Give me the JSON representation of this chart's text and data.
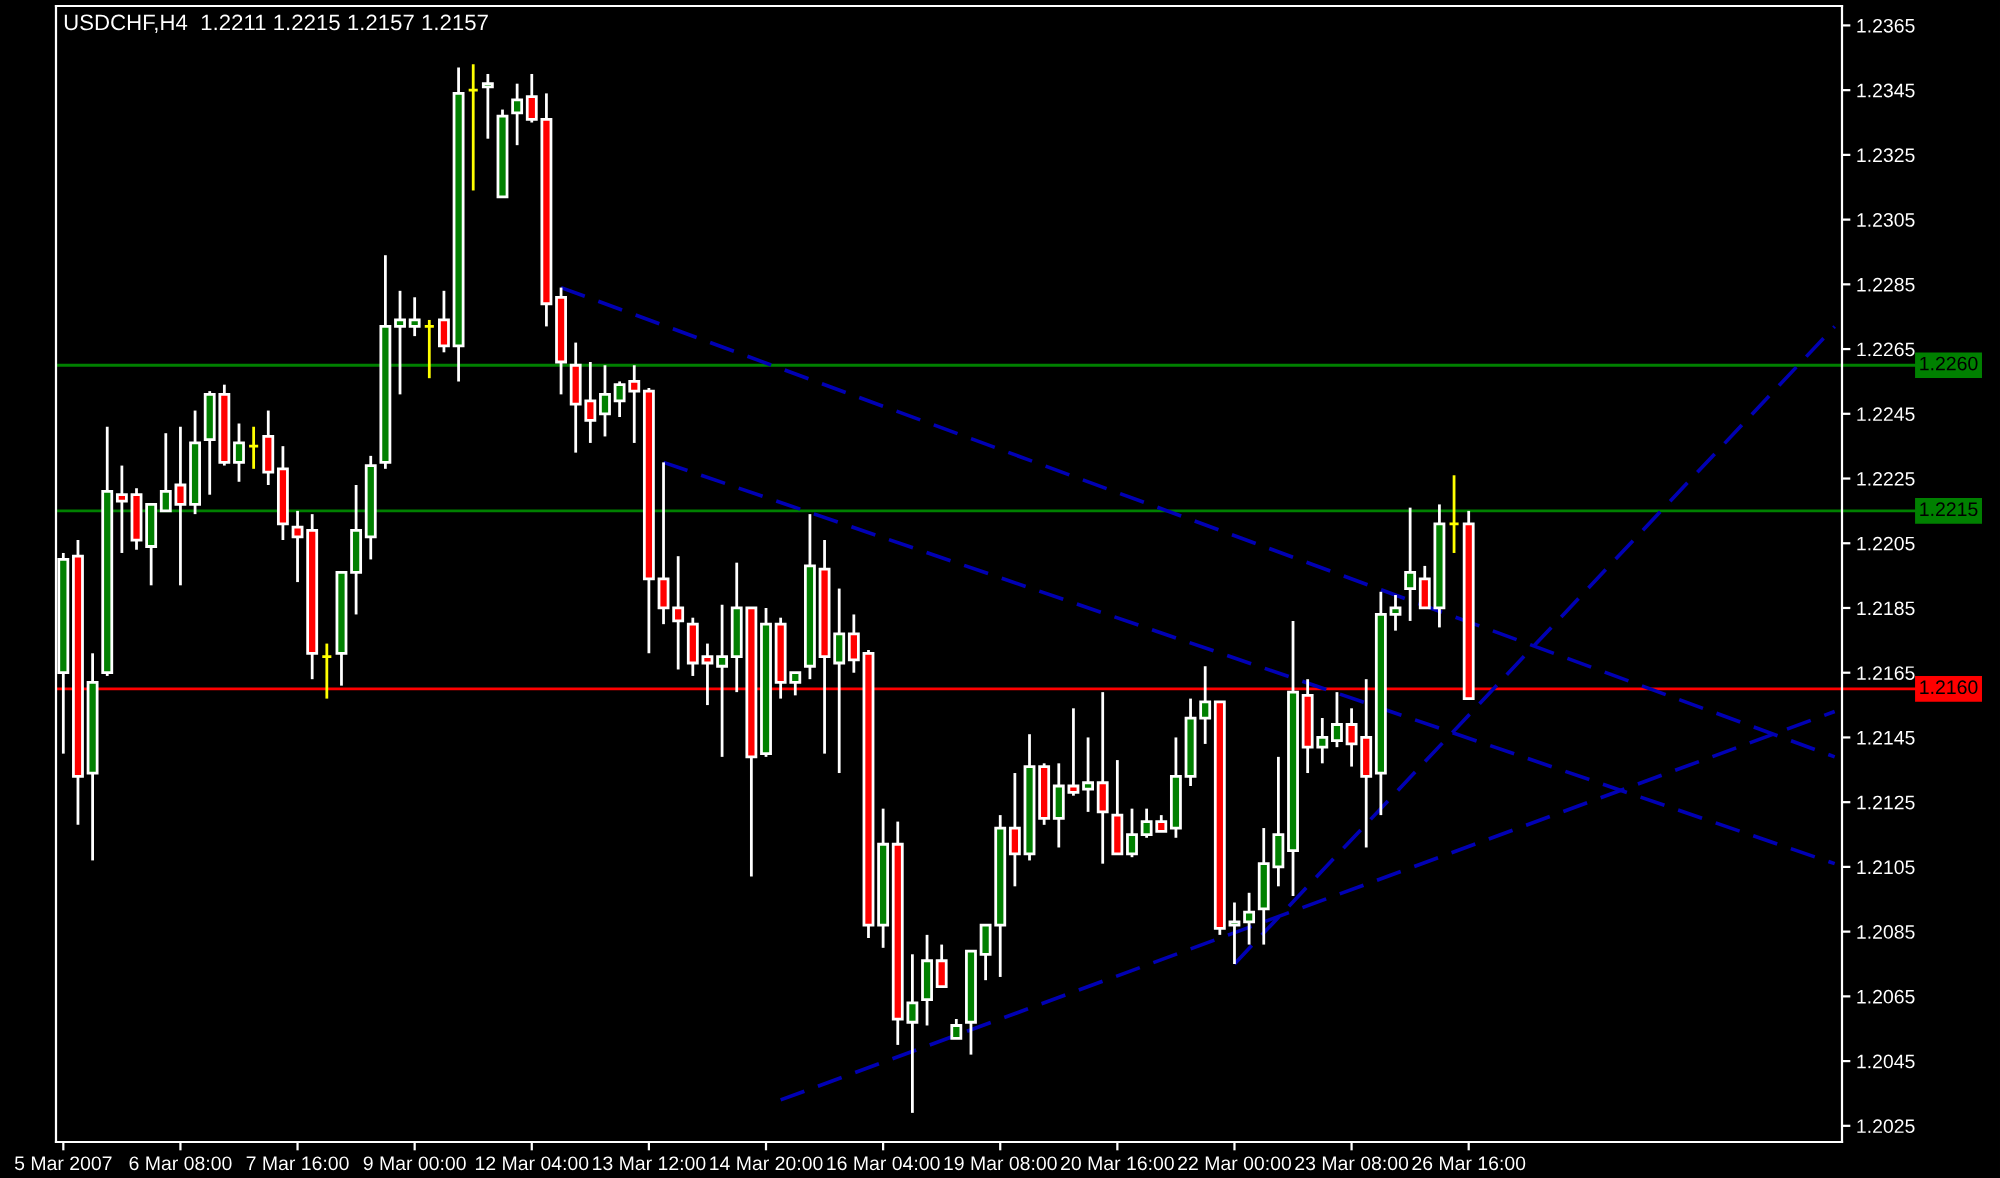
{
  "chart_data": {
    "type": "candlestick",
    "title": "USDCHF,H4  1.2211 1.2215 1.2157 1.2157",
    "categories": [
      "5 Mar 2007",
      null,
      null,
      null,
      null,
      null,
      null,
      null,
      "6 Mar 08:00",
      null,
      null,
      null,
      null,
      null,
      null,
      null,
      "7 Mar 16:00",
      null,
      null,
      null,
      null,
      null,
      null,
      null,
      "9 Mar 00:00",
      null,
      null,
      null,
      null,
      null,
      null,
      null,
      "12 Mar 04:00",
      null,
      null,
      null,
      null,
      null,
      null,
      null,
      "13 Mar 12:00",
      null,
      null,
      null,
      null,
      null,
      null,
      null,
      "14 Mar 20:00",
      null,
      null,
      null,
      null,
      null,
      null,
      null,
      "16 Mar 04:00",
      null,
      null,
      null,
      null,
      null,
      null,
      null,
      "19 Mar 08:00",
      null,
      null,
      null,
      null,
      null,
      null,
      null,
      "20 Mar 16:00",
      null,
      null,
      null,
      null,
      null,
      null,
      null,
      "22 Mar 00:00",
      null,
      null,
      null,
      null,
      null,
      null,
      null,
      "23 Mar 08:00",
      null,
      null,
      null,
      null,
      null,
      null,
      null,
      "26 Mar 16:00",
      null,
      null,
      null,
      null,
      null,
      null,
      null,
      null,
      null,
      null,
      null,
      null,
      null,
      null,
      null,
      null,
      null,
      null,
      null,
      null,
      null,
      null,
      null,
      null,
      null
    ],
    "ohlc": [
      [
        1.2165,
        1.2202,
        1.214,
        1.22
      ],
      [
        1.2201,
        1.2206,
        1.2118,
        1.2133
      ],
      [
        1.2134,
        1.2171,
        1.2107,
        1.2162
      ],
      [
        1.2165,
        1.2241,
        1.2164,
        1.2221
      ],
      [
        1.222,
        1.2229,
        1.2202,
        1.2218
      ],
      [
        1.222,
        1.2222,
        1.2203,
        1.2206
      ],
      [
        1.2204,
        1.2217,
        1.2192,
        1.2217
      ],
      [
        1.2215,
        1.2239,
        1.2215,
        1.2221
      ],
      [
        1.2223,
        1.2241,
        1.2192,
        1.2217
      ],
      [
        1.2217,
        1.2246,
        1.2214,
        1.2236
      ],
      [
        1.2237,
        1.2252,
        1.222,
        1.2251
      ],
      [
        1.2251,
        1.2254,
        1.2229,
        1.223
      ],
      [
        1.223,
        1.2242,
        1.2224,
        1.2236
      ],
      [
        1.2235,
        1.2241,
        1.2228,
        1.2235
      ],
      [
        1.2238,
        1.2246,
        1.2223,
        1.2227
      ],
      [
        1.2228,
        1.2235,
        1.2206,
        1.2211
      ],
      [
        1.221,
        1.2215,
        1.2193,
        1.2207
      ],
      [
        1.2209,
        1.2214,
        1.2163,
        1.2171
      ],
      [
        1.217,
        1.2174,
        1.2157,
        1.217
      ],
      [
        1.2171,
        1.2196,
        1.2161,
        1.2196
      ],
      [
        1.2196,
        1.2223,
        1.2183,
        1.2209
      ],
      [
        1.2207,
        1.2232,
        1.22,
        1.2229
      ],
      [
        1.223,
        1.2294,
        1.2228,
        1.2272
      ],
      [
        1.2272,
        1.2283,
        1.2251,
        1.2274
      ],
      [
        1.2272,
        1.2281,
        1.2269,
        1.2274
      ],
      [
        1.2272,
        1.2274,
        1.2256,
        1.2272
      ],
      [
        1.2274,
        1.2283,
        1.2264,
        1.2266
      ],
      [
        1.2266,
        1.2352,
        1.2255,
        1.2344
      ],
      [
        1.2345,
        1.2353,
        1.2314,
        1.2345
      ],
      [
        1.2346,
        1.235,
        1.233,
        1.2347
      ],
      [
        1.2312,
        1.2339,
        1.2312,
        1.2337
      ],
      [
        1.2338,
        1.2347,
        1.2328,
        1.2342
      ],
      [
        1.2343,
        1.235,
        1.2335,
        1.2336
      ],
      [
        1.2336,
        1.2344,
        1.2272,
        1.2279
      ],
      [
        1.2281,
        1.2284,
        1.2251,
        1.2261
      ],
      [
        1.226,
        1.2267,
        1.2233,
        1.2248
      ],
      [
        1.2249,
        1.2261,
        1.2236,
        1.2243
      ],
      [
        1.2245,
        1.226,
        1.2238,
        1.2251
      ],
      [
        1.2249,
        1.2255,
        1.2244,
        1.2254
      ],
      [
        1.2255,
        1.226,
        1.2236,
        1.2252
      ],
      [
        1.2252,
        1.2253,
        1.2171,
        1.2194
      ],
      [
        1.2194,
        1.223,
        1.218,
        1.2185
      ],
      [
        1.2185,
        1.2201,
        1.2166,
        1.2181
      ],
      [
        1.218,
        1.2182,
        1.2164,
        1.2168
      ],
      [
        1.217,
        1.2174,
        1.2155,
        1.2168
      ],
      [
        1.2167,
        1.2186,
        1.2139,
        1.217
      ],
      [
        1.217,
        1.2199,
        1.2159,
        1.2185
      ],
      [
        1.2185,
        1.2185,
        1.2102,
        1.2139
      ],
      [
        1.214,
        1.2185,
        1.2139,
        1.218
      ],
      [
        1.218,
        1.2182,
        1.2157,
        1.2162
      ],
      [
        1.2162,
        1.2165,
        1.2158,
        1.2165
      ],
      [
        1.2167,
        1.2214,
        1.2163,
        1.2198
      ],
      [
        1.2197,
        1.2206,
        1.214,
        1.217
      ],
      [
        1.2168,
        1.2191,
        1.2134,
        1.2177
      ],
      [
        1.2177,
        1.2183,
        1.2165,
        1.2169
      ],
      [
        1.2171,
        1.2172,
        1.2083,
        1.2087
      ],
      [
        1.2087,
        1.2123,
        1.208,
        1.2112
      ],
      [
        1.2112,
        1.2119,
        1.205,
        1.2058
      ],
      [
        1.2057,
        1.2078,
        1.2029,
        1.2063
      ],
      [
        1.2064,
        1.2084,
        1.2056,
        1.2076
      ],
      [
        1.2076,
        1.2081,
        1.2068,
        1.2068
      ],
      [
        1.2052,
        1.2058,
        1.2052,
        1.2056
      ],
      [
        1.2057,
        1.2079,
        1.2047,
        1.2079
      ],
      [
        1.2078,
        1.2087,
        1.207,
        1.2087
      ],
      [
        1.2087,
        1.2121,
        1.2071,
        1.2117
      ],
      [
        1.2117,
        1.2134,
        1.2099,
        1.2109
      ],
      [
        1.2109,
        1.2146,
        1.2107,
        1.2136
      ],
      [
        1.2136,
        1.2137,
        1.2118,
        1.212
      ],
      [
        1.212,
        1.2137,
        1.2111,
        1.213
      ],
      [
        1.213,
        1.2154,
        1.2127,
        1.2128
      ],
      [
        1.2129,
        1.2145,
        1.2122,
        1.2131
      ],
      [
        1.2131,
        1.2159,
        1.2106,
        1.2122
      ],
      [
        1.2121,
        1.2138,
        1.2109,
        1.2109
      ],
      [
        1.2109,
        1.2123,
        1.2108,
        1.2115
      ],
      [
        1.2115,
        1.2123,
        1.2114,
        1.2119
      ],
      [
        1.2119,
        1.2121,
        1.2116,
        1.2116
      ],
      [
        1.2117,
        1.2145,
        1.2114,
        1.2133
      ],
      [
        1.2133,
        1.2157,
        1.213,
        1.2151
      ],
      [
        1.2151,
        1.2167,
        1.2143,
        1.2156
      ],
      [
        1.2156,
        1.2156,
        1.2084,
        1.2086
      ],
      [
        1.2087,
        1.2094,
        1.2075,
        1.2088
      ],
      [
        1.2088,
        1.2097,
        1.2081,
        1.2091
      ],
      [
        1.2092,
        1.2117,
        1.2081,
        1.2106
      ],
      [
        1.2105,
        1.2139,
        1.2099,
        1.2115
      ],
      [
        1.211,
        1.2181,
        1.2096,
        1.2159
      ],
      [
        1.2158,
        1.2163,
        1.2134,
        1.2142
      ],
      [
        1.2142,
        1.2151,
        1.2137,
        1.2145
      ],
      [
        1.2144,
        1.2159,
        1.2142,
        1.2149
      ],
      [
        1.2149,
        1.2154,
        1.2136,
        1.2143
      ],
      [
        1.2145,
        1.2163,
        1.2111,
        1.2133
      ],
      [
        1.2134,
        1.219,
        1.2121,
        1.2183
      ],
      [
        1.2183,
        1.2189,
        1.2178,
        1.2185
      ],
      [
        1.2191,
        1.2216,
        1.2181,
        1.2196
      ],
      [
        1.2194,
        1.2198,
        1.2185,
        1.2185
      ],
      [
        1.2185,
        1.2217,
        1.2179,
        1.2211
      ],
      [
        1.2211,
        1.2226,
        1.2202,
        1.2211
      ],
      [
        1.2211,
        1.2215,
        1.2157,
        1.2157
      ],
      null,
      null,
      null,
      null,
      null,
      null,
      null,
      null,
      null,
      null,
      null,
      null,
      null,
      null,
      null,
      null,
      null,
      null,
      null,
      null,
      null,
      null,
      null,
      null,
      null
    ],
    "colors": [
      "#008000",
      "#ff0000",
      "#008000",
      "#008000",
      "#ff0000",
      "#ff0000",
      "#008000",
      "#008000",
      "#ff0000",
      "#008000",
      "#008000",
      "#ff0000",
      "#008000",
      "#ffff00",
      "#ff0000",
      "#ff0000",
      "#ff0000",
      "#ff0000",
      "#ffff00",
      "#008000",
      "#008000",
      "#008000",
      "#008000",
      "#008000",
      "#008000",
      "#ffff00",
      "#ff0000",
      "#008000",
      "#ffff00",
      "#008000",
      "#008000",
      "#008000",
      "#ff0000",
      "#ff0000",
      "#ff0000",
      "#ff0000",
      "#ff0000",
      "#008000",
      "#008000",
      "#ff0000",
      "#ff0000",
      "#ff0000",
      "#ff0000",
      "#ff0000",
      "#ff0000",
      "#008000",
      "#008000",
      "#ff0000",
      "#008000",
      "#ff0000",
      "#008000",
      "#008000",
      "#ff0000",
      "#008000",
      "#ff0000",
      "#ff0000",
      "#008000",
      "#ff0000",
      "#008000",
      "#008000",
      "#ff0000",
      "#008000",
      "#008000",
      "#008000",
      "#008000",
      "#ff0000",
      "#008000",
      "#ff0000",
      "#008000",
      "#ff0000",
      "#008000",
      "#ff0000",
      "#ff0000",
      "#008000",
      "#008000",
      "#ff0000",
      "#008000",
      "#008000",
      "#008000",
      "#ff0000",
      "#008000",
      "#008000",
      "#008000",
      "#008000",
      "#008000",
      "#ff0000",
      "#008000",
      "#008000",
      "#ff0000",
      "#ff0000",
      "#008000",
      "#008000",
      "#008000",
      "#ff0000",
      "#008000",
      "#ffff00",
      "#ff0000",
      null,
      null,
      null,
      null,
      null,
      null,
      null,
      null,
      null,
      null,
      null,
      null,
      null,
      null,
      null,
      null,
      null,
      null,
      null,
      null,
      null,
      null,
      null,
      null,
      null
    ],
    "ylim": [
      1.202,
      1.2371
    ],
    "yticks": [
      1.2025,
      1.2045,
      1.2065,
      1.2085,
      1.2105,
      1.2125,
      1.2145,
      1.2165,
      1.2185,
      1.2205,
      1.2225,
      1.2245,
      1.2265,
      1.2285,
      1.2305,
      1.2325,
      1.2345,
      1.2365
    ],
    "ref_lines": [
      {
        "axis": "y",
        "value": 1.226,
        "label": "1.2260",
        "color": "#008000",
        "line_style": "solid"
      },
      {
        "axis": "y",
        "value": 1.2215,
        "label": "1.2215",
        "color": "#008000",
        "line_style": "solid"
      },
      {
        "axis": "y",
        "value": 1.216,
        "label": "1.2160",
        "color": "#ff0000",
        "line_style": "solid"
      }
    ],
    "series": [
      {
        "type": "line",
        "color": "#0000b4",
        "line_style": "dashed",
        "values": [
          null,
          null,
          null,
          null,
          null,
          null,
          null,
          null,
          null,
          null,
          null,
          null,
          null,
          null,
          null,
          null,
          null,
          null,
          null,
          null,
          null,
          null,
          null,
          null,
          null,
          null,
          null,
          null,
          null,
          null,
          null,
          null,
          null,
          null,
          1.2284,
          null,
          null,
          null,
          null,
          null,
          null,
          null,
          null,
          null,
          null,
          null,
          null,
          null,
          null,
          null,
          null,
          null,
          null,
          null,
          null,
          null,
          null,
          null,
          null,
          null,
          null,
          null,
          null,
          null,
          null,
          null,
          null,
          null,
          null,
          null,
          null,
          null,
          null,
          null,
          null,
          null,
          null,
          null,
          null,
          null,
          null,
          null,
          null,
          null,
          null,
          null,
          null,
          null,
          null,
          null,
          null,
          null,
          null,
          null,
          null,
          null,
          null,
          null,
          null,
          null,
          null,
          null,
          null,
          null,
          null,
          null,
          null,
          null,
          null,
          null,
          null,
          null,
          null,
          null,
          null,
          null,
          null,
          null,
          null,
          null,
          null,
          1.2139
        ]
      },
      {
        "type": "line",
        "color": "#0000b4",
        "line_style": "dashed",
        "values": [
          null,
          null,
          null,
          null,
          null,
          null,
          null,
          null,
          null,
          null,
          null,
          null,
          null,
          null,
          null,
          null,
          null,
          null,
          null,
          null,
          null,
          null,
          null,
          null,
          null,
          null,
          null,
          null,
          null,
          null,
          null,
          null,
          null,
          null,
          null,
          null,
          null,
          null,
          null,
          null,
          null,
          1.223,
          null,
          null,
          null,
          null,
          null,
          null,
          null,
          null,
          null,
          null,
          null,
          null,
          null,
          null,
          null,
          null,
          null,
          null,
          null,
          null,
          null,
          null,
          null,
          null,
          null,
          null,
          null,
          null,
          null,
          null,
          null,
          null,
          null,
          null,
          null,
          null,
          null,
          null,
          null,
          null,
          null,
          null,
          null,
          null,
          null,
          null,
          null,
          null,
          null,
          null,
          null,
          null,
          null,
          null,
          null,
          null,
          null,
          null,
          null,
          null,
          null,
          null,
          null,
          null,
          null,
          null,
          null,
          null,
          null,
          null,
          null,
          null,
          null,
          null,
          null,
          null,
          null,
          null,
          null,
          1.2106
        ]
      },
      {
        "type": "line",
        "color": "#0000b4",
        "line_style": "dashed",
        "values": [
          null,
          null,
          null,
          null,
          null,
          null,
          null,
          null,
          null,
          null,
          null,
          null,
          null,
          null,
          null,
          null,
          null,
          null,
          null,
          null,
          null,
          null,
          null,
          null,
          null,
          null,
          null,
          null,
          null,
          null,
          null,
          null,
          null,
          null,
          null,
          null,
          null,
          null,
          null,
          null,
          null,
          null,
          null,
          null,
          null,
          null,
          null,
          null,
          null,
          1.2033,
          null,
          null,
          null,
          null,
          null,
          null,
          null,
          null,
          null,
          null,
          null,
          null,
          null,
          null,
          null,
          null,
          null,
          null,
          null,
          null,
          null,
          null,
          null,
          null,
          null,
          null,
          null,
          null,
          null,
          null,
          null,
          null,
          null,
          null,
          null,
          null,
          null,
          null,
          null,
          null,
          null,
          null,
          null,
          null,
          null,
          null,
          null,
          null,
          null,
          null,
          null,
          null,
          null,
          null,
          null,
          null,
          null,
          null,
          null,
          null,
          null,
          null,
          null,
          null,
          null,
          null,
          null,
          null,
          null,
          null,
          null,
          1.2153
        ]
      },
      {
        "type": "line",
        "color": "#0000b4",
        "line_style": "dashed",
        "values": [
          null,
          null,
          null,
          null,
          null,
          null,
          null,
          null,
          null,
          null,
          null,
          null,
          null,
          null,
          null,
          null,
          null,
          null,
          null,
          null,
          null,
          null,
          null,
          null,
          null,
          null,
          null,
          null,
          null,
          null,
          null,
          null,
          null,
          null,
          null,
          null,
          null,
          null,
          null,
          null,
          null,
          null,
          null,
          null,
          null,
          null,
          null,
          null,
          null,
          null,
          null,
          null,
          null,
          null,
          null,
          null,
          null,
          null,
          null,
          null,
          null,
          null,
          null,
          null,
          null,
          null,
          null,
          null,
          null,
          null,
          null,
          null,
          null,
          null,
          null,
          null,
          null,
          null,
          null,
          null,
          1.2075,
          null,
          null,
          null,
          null,
          null,
          null,
          null,
          null,
          null,
          null,
          null,
          null,
          null,
          null,
          null,
          null,
          null,
          null,
          null,
          null,
          null,
          null,
          null,
          null,
          null,
          null,
          null,
          null,
          null,
          null,
          null,
          null,
          null,
          null,
          null,
          null,
          null,
          null,
          null,
          null,
          1.2272
        ]
      }
    ]
  }
}
